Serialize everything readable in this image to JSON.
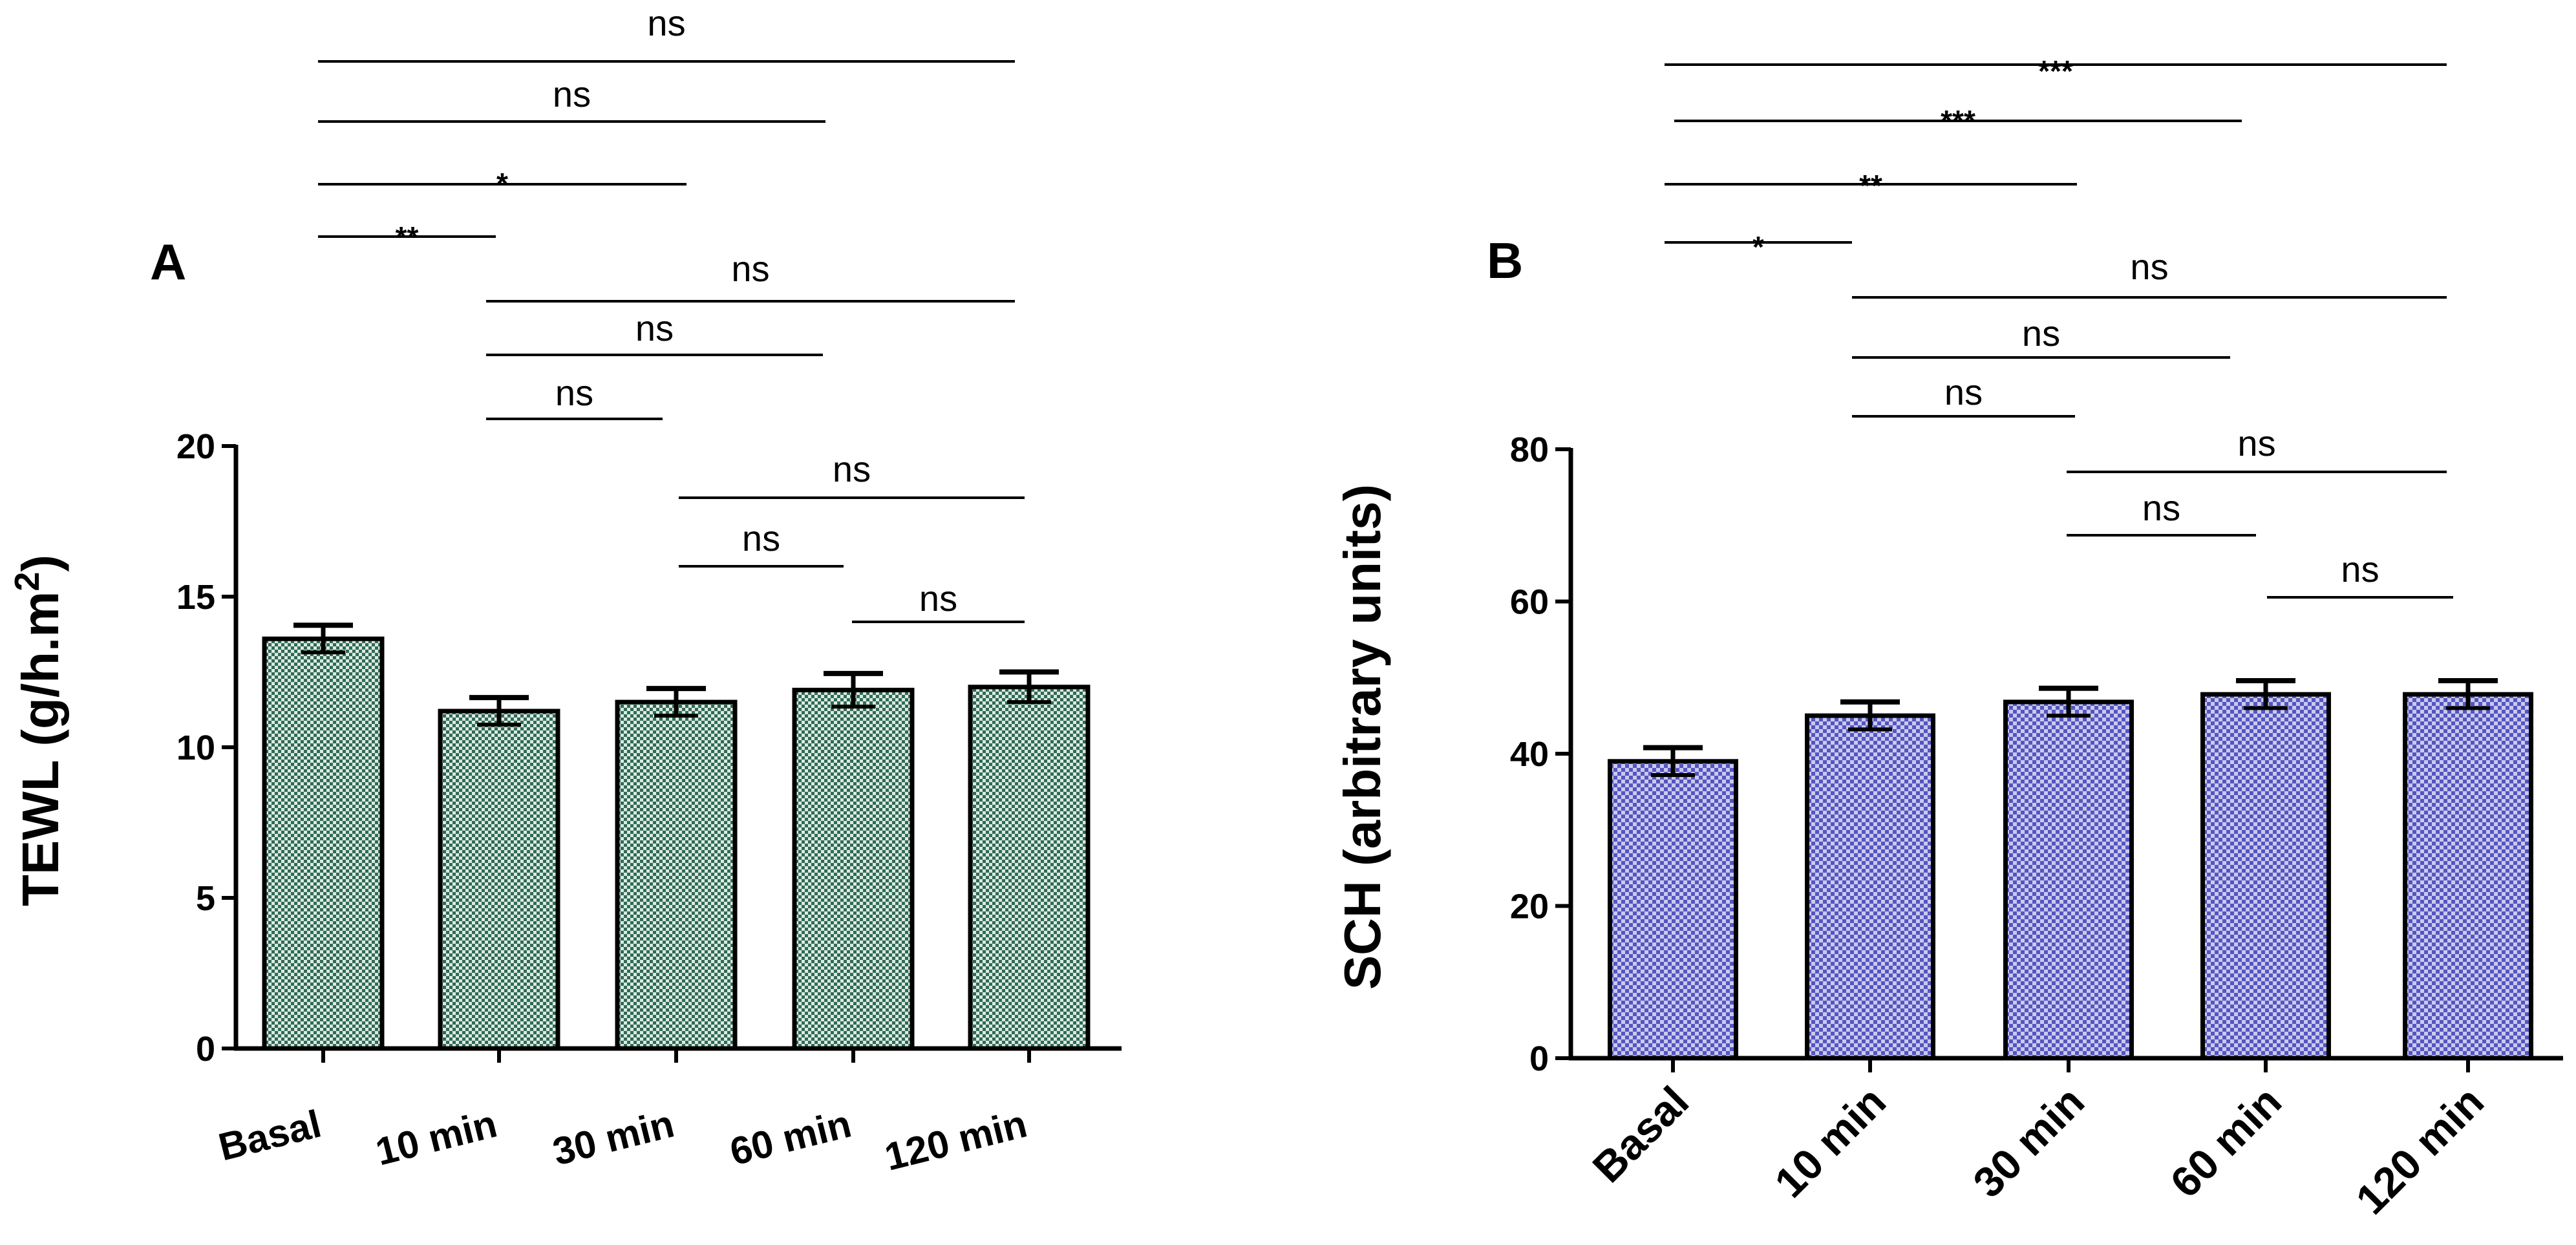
{
  "chart_data": [
    {
      "type": "bar",
      "panel": "A",
      "categories": [
        "Basal",
        "10  min",
        "30 min",
        "60 min",
        "120 min"
      ],
      "values": [
        13.6,
        11.2,
        11.5,
        11.9,
        12.0
      ],
      "errors": [
        0.45,
        0.45,
        0.45,
        0.55,
        0.5
      ],
      "ylabel": "TEWL (g/h.m",
      "ylabel_sup": "2",
      "ylabel_close": ")",
      "ylim": [
        0,
        20
      ],
      "yticks": [
        "0",
        "5",
        "10",
        "15",
        "20"
      ],
      "yticks_values": [
        0,
        5,
        10,
        15,
        20
      ],
      "bar_color": "#3d7a65",
      "comparisons": [
        {
          "from": 0,
          "to": 4,
          "label": "ns"
        },
        {
          "from": 0,
          "to": 3,
          "label": "ns"
        },
        {
          "from": 0,
          "to": 2,
          "label": "*"
        },
        {
          "from": 0,
          "to": 1,
          "label": "**"
        },
        {
          "from": 1,
          "to": 4,
          "label": "ns"
        },
        {
          "from": 1,
          "to": 3,
          "label": "ns"
        },
        {
          "from": 1,
          "to": 2,
          "label": "ns"
        },
        {
          "from": 2,
          "to": 4,
          "label": "ns"
        },
        {
          "from": 2,
          "to": 3,
          "label": "ns"
        },
        {
          "from": 3,
          "to": 4,
          "label": "ns"
        }
      ]
    },
    {
      "type": "bar",
      "panel": "B",
      "categories": [
        "Basal",
        "10  min",
        "30 min",
        "60 min",
        "120 min"
      ],
      "values": [
        39,
        45,
        46.8,
        47.8,
        47.8
      ],
      "errors": [
        1.8,
        1.8,
        1.8,
        1.8,
        1.8
      ],
      "ylabel": "SCH (arbitrary units)",
      "ylim": [
        0,
        80
      ],
      "yticks": [
        "0",
        "20",
        "40",
        "60",
        "80"
      ],
      "yticks_values": [
        0,
        20,
        40,
        60,
        80
      ],
      "bar_color": "#6a6acf",
      "comparisons": [
        {
          "from": 0,
          "to": 4,
          "label": "***"
        },
        {
          "from": 0,
          "to": 3,
          "label": "***"
        },
        {
          "from": 0,
          "to": 2,
          "label": "**"
        },
        {
          "from": 0,
          "to": 1,
          "label": "*"
        },
        {
          "from": 1,
          "to": 4,
          "label": "ns"
        },
        {
          "from": 1,
          "to": 3,
          "label": "ns"
        },
        {
          "from": 1,
          "to": 2,
          "label": "ns"
        },
        {
          "from": 2,
          "to": 4,
          "label": "ns"
        },
        {
          "from": 2,
          "to": 3,
          "label": "ns"
        },
        {
          "from": 3,
          "to": 4,
          "label": "ns"
        }
      ]
    }
  ]
}
